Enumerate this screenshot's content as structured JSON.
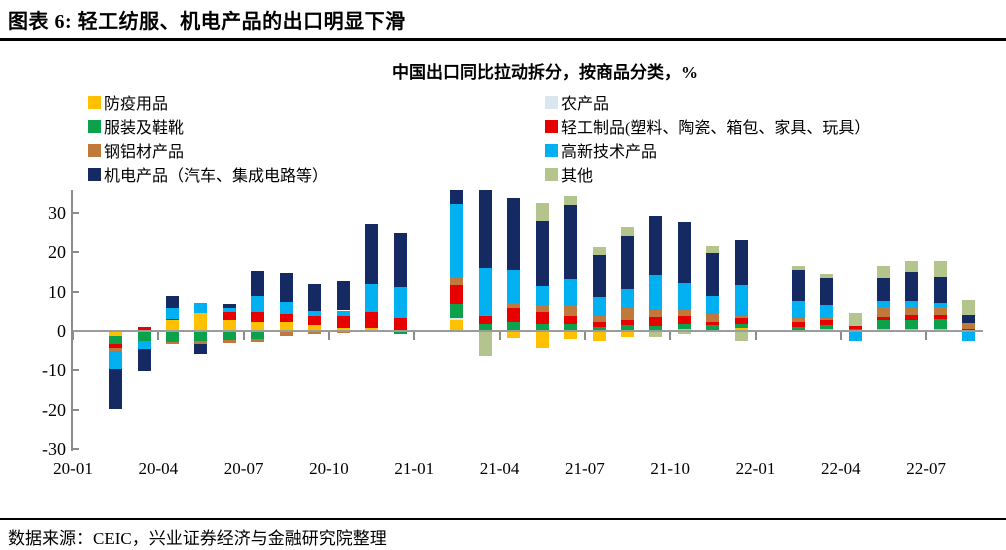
{
  "page": {
    "header_title": "图表 6: 轻工纺服、机电产品的出口明显下滑",
    "source_note": "数据来源：CEIC，兴业证券经济与金融研究院整理"
  },
  "chart_data": {
    "type": "bar",
    "stacked": true,
    "title": "中国出口同比拉动拆分，按商品分类，%",
    "grid": false,
    "legend_position": "top-two-columns",
    "legend_columns": [
      [
        0,
        2,
        4,
        6
      ],
      [
        1,
        3,
        5,
        7
      ]
    ],
    "categories": [
      "20-01",
      "20-02",
      "20-03",
      "20-04",
      "20-05",
      "20-06",
      "20-07",
      "20-08",
      "20-09",
      "20-10",
      "20-11",
      "20-12",
      "21-01",
      "21-02",
      "21-03",
      "21-04",
      "21-05",
      "21-06",
      "21-07",
      "21-08",
      "21-09",
      "21-10",
      "21-11",
      "21-12",
      "22-01",
      "22-02",
      "22-03",
      "22-04",
      "22-05",
      "22-06",
      "22-07",
      "22-08"
    ],
    "missing_months": [
      "20-01",
      "21-01",
      "22-01"
    ],
    "x_tick_labels": [
      "20-01",
      "20-04",
      "20-07",
      "20-10",
      "21-01",
      "21-04",
      "21-07",
      "21-10",
      "22-01",
      "22-04",
      "22-07"
    ],
    "ylim": [
      -30,
      35.8
    ],
    "y_ticks": [
      30,
      20,
      10,
      0,
      -10,
      -20,
      -30
    ],
    "units": "percentage points contribution to export YoY growth",
    "series": [
      {
        "name": "防疫用品",
        "color": "#FFC000",
        "values": [
          0,
          -1.1,
          0,
          2.8,
          4.5,
          2.8,
          2.4,
          2.2,
          1.5,
          0.8,
          0.8,
          0.2,
          0,
          2.8,
          0,
          -1.6,
          -4.0,
          -1.8,
          -2.4,
          -1.3,
          0,
          0.5,
          0,
          0.8,
          0,
          0.3,
          0.6,
          0,
          0.5,
          0.6,
          0.5,
          0
        ]
      },
      {
        "name": "农产品",
        "color": "#DCE6F1",
        "values": [
          0,
          0,
          0,
          0,
          0,
          0,
          0,
          0,
          0,
          0,
          0,
          0,
          0,
          0.4,
          0,
          0,
          0,
          0,
          0,
          0,
          0,
          0,
          0,
          0,
          0,
          0,
          0,
          0,
          0,
          0,
          0,
          0
        ]
      },
      {
        "name": "服装及鞋靴",
        "color": "#0CA24C",
        "values": [
          0,
          -1.9,
          -2.2,
          -2.5,
          -2.3,
          -2.0,
          -1.7,
          0,
          0,
          0,
          0,
          -0.6,
          0,
          3.6,
          1.7,
          2.4,
          1.8,
          1.7,
          1.0,
          1.4,
          1.3,
          1.4,
          1.4,
          1.1,
          0,
          0.8,
          1.0,
          0.6,
          2.2,
          2.3,
          2.5,
          0.3
        ]
      },
      {
        "name": "轻工制品(塑料、陶瓷、箱包、家具、玩具）",
        "color": "#E60000",
        "values": [
          0,
          -1.1,
          0.9,
          0.3,
          0,
          1.9,
          2.4,
          2.0,
          2.3,
          3.0,
          4.1,
          3.2,
          0,
          4.8,
          2.1,
          3.4,
          3.1,
          2.0,
          1.4,
          1.3,
          2.2,
          1.9,
          1.0,
          1.3,
          0,
          1.3,
          1.1,
          0.7,
          0.9,
          1.1,
          1.1,
          0.3
        ]
      },
      {
        "name": "钢铝材产品",
        "color": "#C0793B",
        "values": [
          0,
          -0.8,
          0,
          -0.6,
          -0.8,
          -0.9,
          -0.9,
          -0.9,
          -0.5,
          -0.3,
          0,
          0,
          0,
          2.1,
          0.3,
          1.3,
          1.7,
          2.8,
          1.5,
          3.2,
          1.9,
          1.5,
          1.9,
          0.5,
          0,
          0.8,
          0.6,
          0,
          2.4,
          2.1,
          1.9,
          1.4
        ]
      },
      {
        "name": "高新技术产品",
        "color": "#00B0F0",
        "values": [
          0,
          -4.4,
          -2.0,
          2.7,
          2.7,
          1.2,
          4.0,
          3.2,
          1.3,
          1.4,
          7.1,
          7.8,
          0,
          18.6,
          12.0,
          8.3,
          4.8,
          6.7,
          4.8,
          4.8,
          8.7,
          7.0,
          4.6,
          8.0,
          0,
          4.5,
          3.2,
          -2.2,
          1.5,
          1.5,
          1.2,
          -2.2
        ]
      },
      {
        "name": "机电产品（汽车、集成电路等）",
        "color": "#152A63",
        "values": [
          0,
          -10.2,
          -5.7,
          3.1,
          -2.4,
          0.9,
          6.5,
          7.2,
          6.9,
          7.4,
          15.1,
          13.8,
          0,
          3.7,
          19.7,
          18.3,
          16.6,
          18.8,
          10.5,
          13.4,
          15.0,
          15.3,
          11.0,
          11.3,
          0,
          7.8,
          6.9,
          0,
          5.9,
          7.4,
          6.6,
          2.0
        ]
      },
      {
        "name": "其他",
        "color": "#B3C58C",
        "values": [
          0,
          0,
          0,
          0,
          0,
          0,
          0,
          0,
          0,
          0,
          0,
          0,
          0,
          0,
          -6.1,
          0,
          4.4,
          2.3,
          2.2,
          2.4,
          -1.3,
          -0.5,
          1.7,
          -2.2,
          0,
          0.9,
          1.1,
          3.3,
          3.2,
          2.8,
          4.0,
          3.8
        ]
      }
    ]
  }
}
